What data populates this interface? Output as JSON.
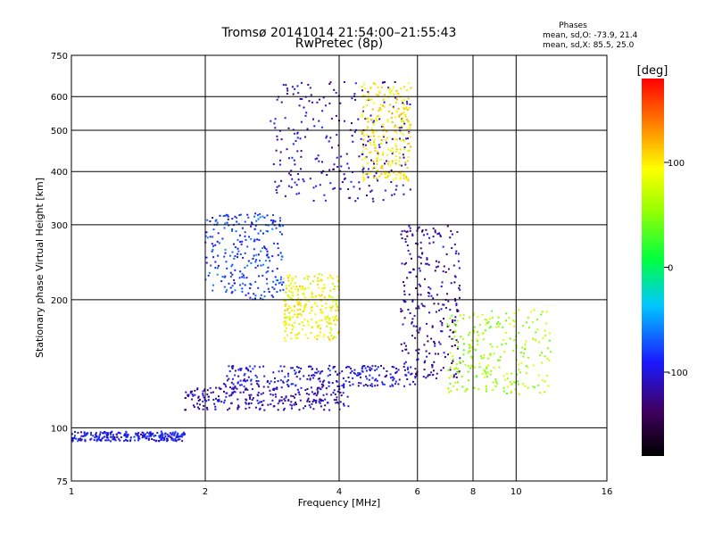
{
  "chart_data": {
    "type": "scatter",
    "title": "Tromsø 20141014 21:54:00–21:55:43",
    "subtitle": "RwPretec (8p)",
    "xlabel": "Frequency [MHz]",
    "ylabel": "Stationary phase Virtual Height [km]",
    "x_scale": "log",
    "y_scale": "log",
    "xlim": [
      1,
      16
    ],
    "ylim": [
      75,
      750
    ],
    "x_ticks": [
      1,
      2,
      4,
      6,
      8,
      10,
      16
    ],
    "x_tick_labels": [
      "1",
      "2",
      "4",
      "6",
      "8",
      "10",
      "16"
    ],
    "x_grid": [
      2,
      4,
      6,
      8,
      10
    ],
    "y_ticks": [
      75,
      100,
      200,
      300,
      400,
      500,
      600,
      750
    ],
    "y_tick_labels": [
      "75",
      "100",
      "200",
      "300",
      "400",
      "500",
      "600",
      "750"
    ],
    "y_grid": [
      100,
      200,
      300,
      400,
      500,
      600
    ],
    "grid": true,
    "phases": {
      "heading": "Phases",
      "line_o": "mean, sd,O: -73.9, 21.4",
      "line_x": "mean, sd,X:  85.5, 25.0"
    },
    "colorbar": {
      "label": "[deg]",
      "range": [
        -180,
        180
      ],
      "ticks": [
        100,
        0,
        -100
      ],
      "tick_labels": [
        "100",
        "0",
        "-100"
      ]
    },
    "clusters": [
      {
        "region": "lower-trace-1",
        "x": [
          1.0,
          1.8
        ],
        "y": [
          93,
          98
        ],
        "phase_deg": -95
      },
      {
        "region": "lower-trace-2",
        "x": [
          1.8,
          4.2
        ],
        "y": [
          110,
          125
        ],
        "phase_deg": -110
      },
      {
        "region": "lower-trace-3",
        "x": [
          2.2,
          6.0
        ],
        "y": [
          125,
          140
        ],
        "phase_deg": -100
      },
      {
        "region": "F1-band",
        "x": [
          2.0,
          3.0
        ],
        "y": [
          200,
          320
        ],
        "phase_deg": -80
      },
      {
        "region": "F2-band",
        "x": [
          2.8,
          5.8
        ],
        "y": [
          340,
          650
        ],
        "phase_deg": -110
      },
      {
        "region": "X-trace-upper",
        "x": [
          4.5,
          5.8
        ],
        "y": [
          380,
          650
        ],
        "phase_deg": 100
      },
      {
        "region": "X-trace-mid",
        "x": [
          3.0,
          4.0
        ],
        "y": [
          160,
          230
        ],
        "phase_deg": 90
      },
      {
        "region": "vertical-traces",
        "x": [
          5.5,
          7.5
        ],
        "y": [
          130,
          300
        ],
        "phase_deg": -120
      },
      {
        "region": "high-freq",
        "x": [
          7.0,
          12.0
        ],
        "y": [
          120,
          190
        ],
        "phase_deg": 60
      }
    ]
  }
}
